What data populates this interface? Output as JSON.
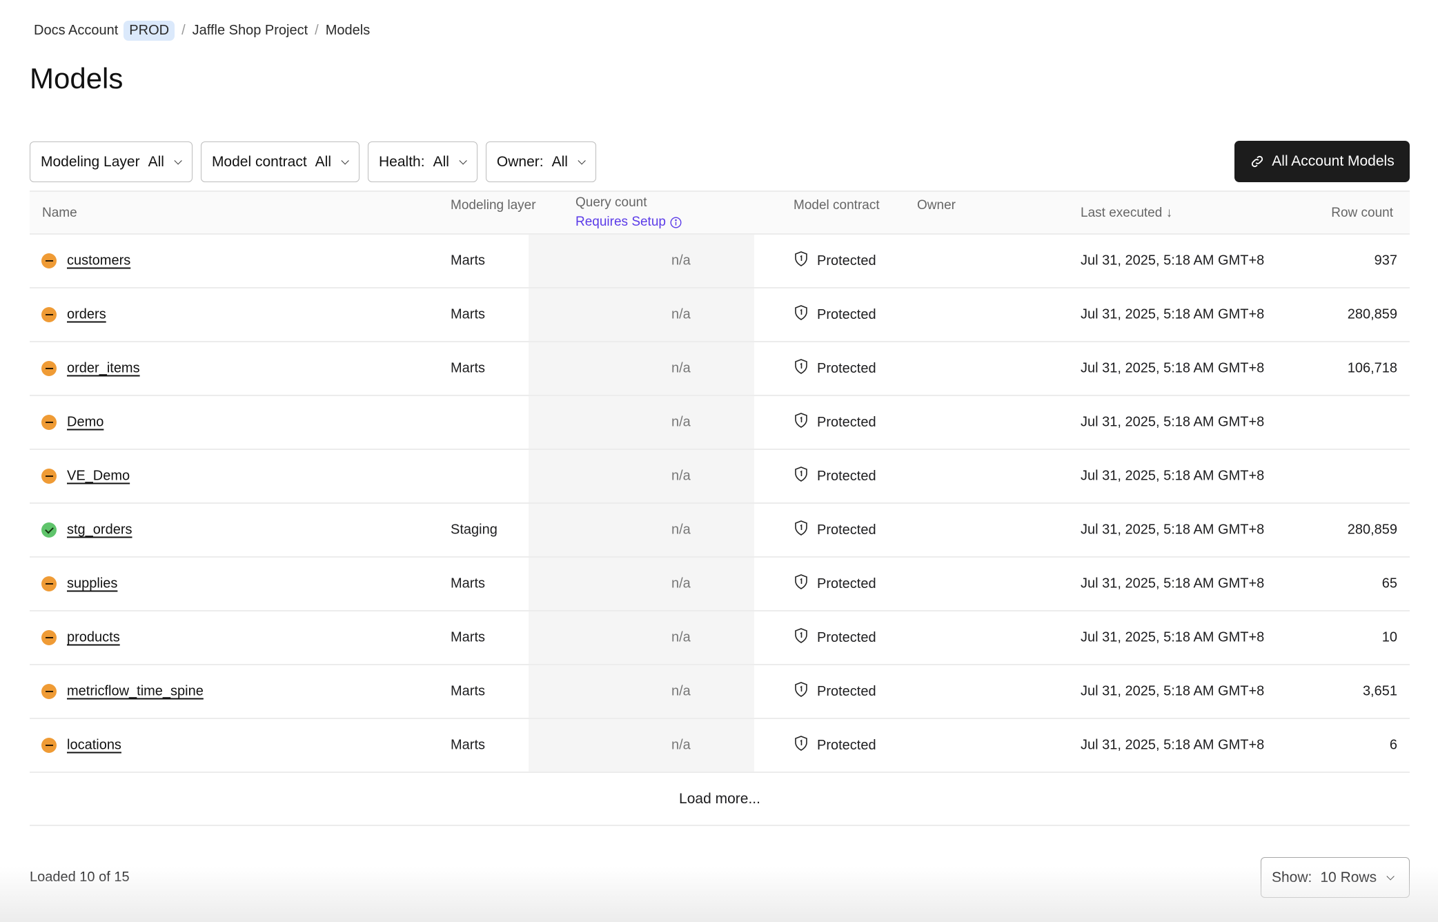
{
  "breadcrumb": {
    "account": "Docs Account",
    "env": "PROD",
    "project": "Jaffle Shop Project",
    "current": "Models"
  },
  "page_title": "Models",
  "filters": [
    {
      "label": "Modeling Layer",
      "value": "All"
    },
    {
      "label": "Model contract",
      "value": "All"
    },
    {
      "label": "Health:",
      "value": "All"
    },
    {
      "label": "Owner:",
      "value": "All"
    }
  ],
  "all_account_models_label": "All Account Models",
  "columns": {
    "name": "Name",
    "layer": "Modeling layer",
    "query": "Query count",
    "query_note": "Requires Setup",
    "contract": "Model contract",
    "owner": "Owner",
    "exec": "Last executed ↓",
    "rows": "Row count"
  },
  "colors": {
    "warning": "#ef9b35",
    "healthy": "#5fc46b",
    "link": "#5b3be8"
  },
  "rows": [
    {
      "health": "warning",
      "name": "customers",
      "layer": "Marts",
      "query": "n/a",
      "contract": "Protected",
      "exec": "Jul 31, 2025, 5:18 AM GMT+8",
      "rows": "937"
    },
    {
      "health": "warning",
      "name": "orders",
      "layer": "Marts",
      "query": "n/a",
      "contract": "Protected",
      "exec": "Jul 31, 2025, 5:18 AM GMT+8",
      "rows": "280,859"
    },
    {
      "health": "warning",
      "name": "order_items",
      "layer": "Marts",
      "query": "n/a",
      "contract": "Protected",
      "exec": "Jul 31, 2025, 5:18 AM GMT+8",
      "rows": "106,718"
    },
    {
      "health": "warning",
      "name": "Demo",
      "layer": "",
      "query": "n/a",
      "contract": "Protected",
      "exec": "Jul 31, 2025, 5:18 AM GMT+8",
      "rows": ""
    },
    {
      "health": "warning",
      "name": "VE_Demo",
      "layer": "",
      "query": "n/a",
      "contract": "Protected",
      "exec": "Jul 31, 2025, 5:18 AM GMT+8",
      "rows": ""
    },
    {
      "health": "healthy",
      "name": "stg_orders",
      "layer": "Staging",
      "query": "n/a",
      "contract": "Protected",
      "exec": "Jul 31, 2025, 5:18 AM GMT+8",
      "rows": "280,859"
    },
    {
      "health": "warning",
      "name": "supplies",
      "layer": "Marts",
      "query": "n/a",
      "contract": "Protected",
      "exec": "Jul 31, 2025, 5:18 AM GMT+8",
      "rows": "65"
    },
    {
      "health": "warning",
      "name": "products",
      "layer": "Marts",
      "query": "n/a",
      "contract": "Protected",
      "exec": "Jul 31, 2025, 5:18 AM GMT+8",
      "rows": "10"
    },
    {
      "health": "warning",
      "name": "metricflow_time_spine",
      "layer": "Marts",
      "query": "n/a",
      "contract": "Protected",
      "exec": "Jul 31, 2025, 5:18 AM GMT+8",
      "rows": "3,651"
    },
    {
      "health": "warning",
      "name": "locations",
      "layer": "Marts",
      "query": "n/a",
      "contract": "Protected",
      "exec": "Jul 31, 2025, 5:18 AM GMT+8",
      "rows": "6"
    }
  ],
  "load_more": "Load more...",
  "loaded_status": "Loaded 10 of 15",
  "show": {
    "label": "Show:",
    "value": "10 Rows"
  }
}
